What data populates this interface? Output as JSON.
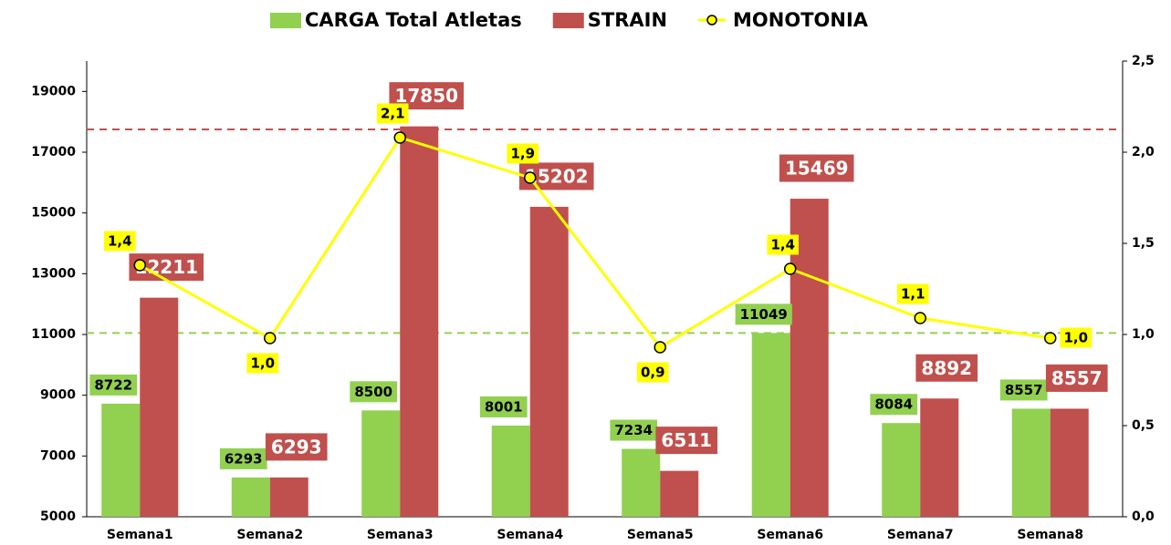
{
  "chart_data": {
    "type": "bar_line",
    "categories": [
      "Semana1",
      "Semana2",
      "Semana3",
      "Semana4",
      "Semana5",
      "Semana6",
      "Semana7",
      "Semana8"
    ],
    "series": [
      {
        "name": "CARGA Total Atletas",
        "color": "#92d050",
        "values": [
          8722,
          6293,
          8500,
          8001,
          7234,
          11049,
          8084,
          8557
        ]
      },
      {
        "name": "STRAIN",
        "color": "#c0504d",
        "values": [
          12211,
          6293,
          17850,
          15202,
          6511,
          15469,
          8892,
          8557
        ]
      },
      {
        "name": "MONOTONIA",
        "color": "#ffff00",
        "axis": "y2",
        "type": "line",
        "values": [
          1.38,
          0.98,
          2.08,
          1.86,
          0.93,
          1.36,
          1.09,
          0.98
        ],
        "value_labels": [
          "1,4",
          "1,0",
          "2,1",
          "1,9",
          "0,9",
          "1,4",
          "1,1",
          "1,0"
        ]
      }
    ],
    "ylim": [
      5000,
      20000
    ],
    "yticks": [
      5000,
      7000,
      9000,
      11000,
      13000,
      15000,
      17000,
      19000
    ],
    "y2lim": [
      0,
      2.5
    ],
    "y2ticks": [
      {
        "value": 0,
        "label": "0,0"
      },
      {
        "value": 0.5,
        "label": "0,5"
      },
      {
        "value": 1,
        "label": "1,0"
      },
      {
        "value": 1.5,
        "label": "1,5"
      },
      {
        "value": 2,
        "label": "2,0"
      },
      {
        "value": 2.5,
        "label": "2,5"
      }
    ],
    "reference_lines": [
      {
        "value": 17750,
        "color": "#c0504d"
      },
      {
        "value": 11050,
        "color": "#92d050"
      }
    ],
    "legend": "top"
  }
}
